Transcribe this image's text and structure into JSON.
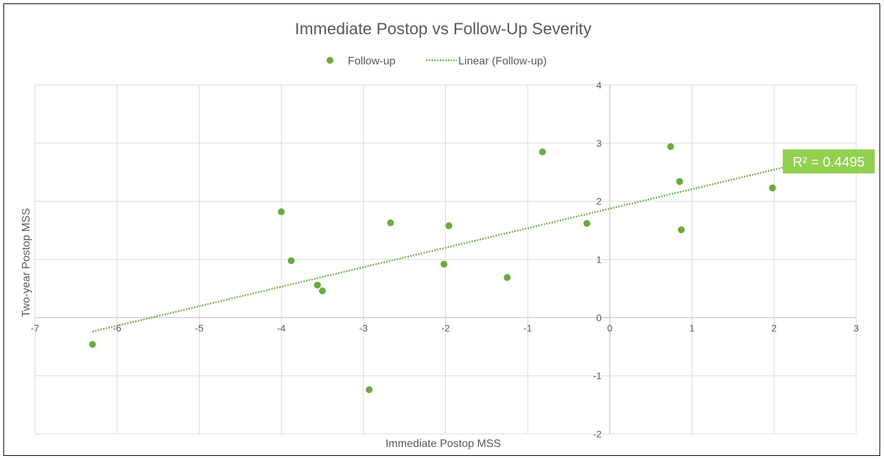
{
  "chart_data": {
    "type": "scatter",
    "title": "Immediate Postop vs Follow-Up Severity",
    "xlabel": "Immediate Postop MSS",
    "ylabel": "Two-year Postop MSS",
    "xlim": [
      -7,
      3
    ],
    "ylim": [
      -2,
      4
    ],
    "x_ticks": [
      -7,
      -6,
      -5,
      -4,
      -3,
      -2,
      -1,
      0,
      1,
      2,
      3
    ],
    "y_ticks": [
      -2,
      -1,
      0,
      1,
      2,
      3,
      4
    ],
    "grid": true,
    "legend_position": "top",
    "series": [
      {
        "name": "Follow-up",
        "color": "#6aab3b",
        "points": [
          {
            "x": -6.3,
            "y": -0.46
          },
          {
            "x": -4.0,
            "y": 1.82
          },
          {
            "x": -3.88,
            "y": 0.98
          },
          {
            "x": -3.56,
            "y": 0.56
          },
          {
            "x": -3.5,
            "y": 0.46
          },
          {
            "x": -2.93,
            "y": -1.24
          },
          {
            "x": -2.67,
            "y": 1.63
          },
          {
            "x": -2.02,
            "y": 0.92
          },
          {
            "x": -1.96,
            "y": 1.58
          },
          {
            "x": -1.25,
            "y": 0.69
          },
          {
            "x": -0.82,
            "y": 2.85
          },
          {
            "x": -0.28,
            "y": 1.62
          },
          {
            "x": 0.74,
            "y": 2.94
          },
          {
            "x": 0.85,
            "y": 2.34
          },
          {
            "x": 0.87,
            "y": 1.51
          },
          {
            "x": 1.98,
            "y": 2.23
          }
        ]
      }
    ],
    "trendline": {
      "name": "Linear (Follow-up)",
      "type": "linear",
      "color": "#6aab3b",
      "x_start": -6.3,
      "y_start": -0.24,
      "x_end": 3.0,
      "y_end": 2.88,
      "r_squared_label": "R² = 0.4495",
      "label_color": "#92d050"
    }
  }
}
